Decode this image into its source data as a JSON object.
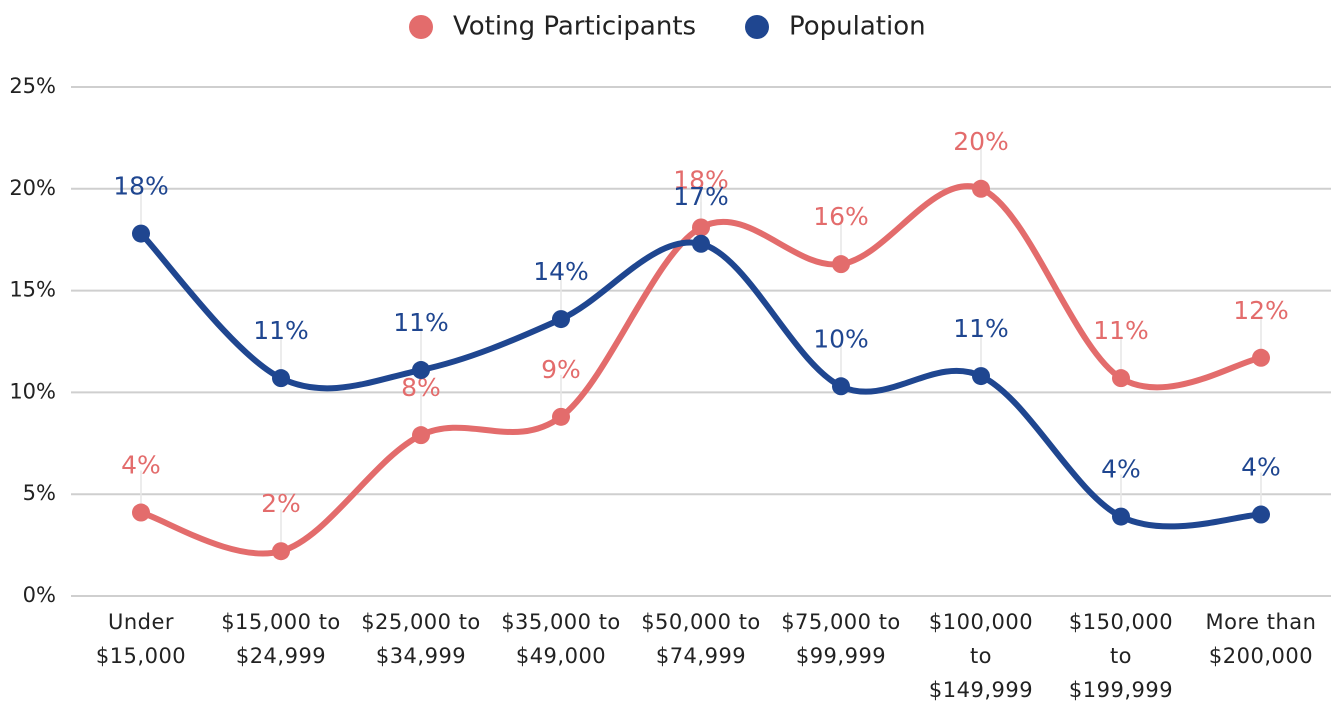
{
  "chart_data": {
    "type": "line",
    "categories": [
      "Under $15,000",
      "$15,000 to $24,999",
      "$25,000 to $34,999",
      "$35,000 to $49,000",
      "$50,000 to $74,999",
      "$75,000 to $99,999",
      "$100,000 to $149,999",
      "$150,000 to $199,999",
      "More than $200,000"
    ],
    "series": [
      {
        "name": "Voting Participants",
        "color": "#e36c6c",
        "values": [
          4.1,
          2.2,
          7.9,
          8.8,
          18.1,
          16.3,
          20.0,
          10.7,
          11.7
        ],
        "value_labels": [
          "4%",
          "2%",
          "8%",
          "9%",
          "18%",
          "16%",
          "20%",
          "11%",
          "12%"
        ]
      },
      {
        "name": "Population",
        "color": "#1f4690",
        "values": [
          17.8,
          10.7,
          11.1,
          13.6,
          17.3,
          10.3,
          10.8,
          3.9,
          4.0
        ],
        "value_labels": [
          "18%",
          "11%",
          "11%",
          "14%",
          "17%",
          "10%",
          "11%",
          "4%",
          "4%"
        ]
      }
    ],
    "ylim": [
      0,
      25
    ],
    "yticks": [
      {
        "value": 0,
        "label": "0%"
      },
      {
        "value": 5,
        "label": "5%"
      },
      {
        "value": 10,
        "label": "10%"
      },
      {
        "value": 15,
        "label": "15%"
      },
      {
        "value": 20,
        "label": "20%"
      },
      {
        "value": 25,
        "label": "25%"
      }
    ],
    "grid": true,
    "smooth": true,
    "legend": "top"
  }
}
